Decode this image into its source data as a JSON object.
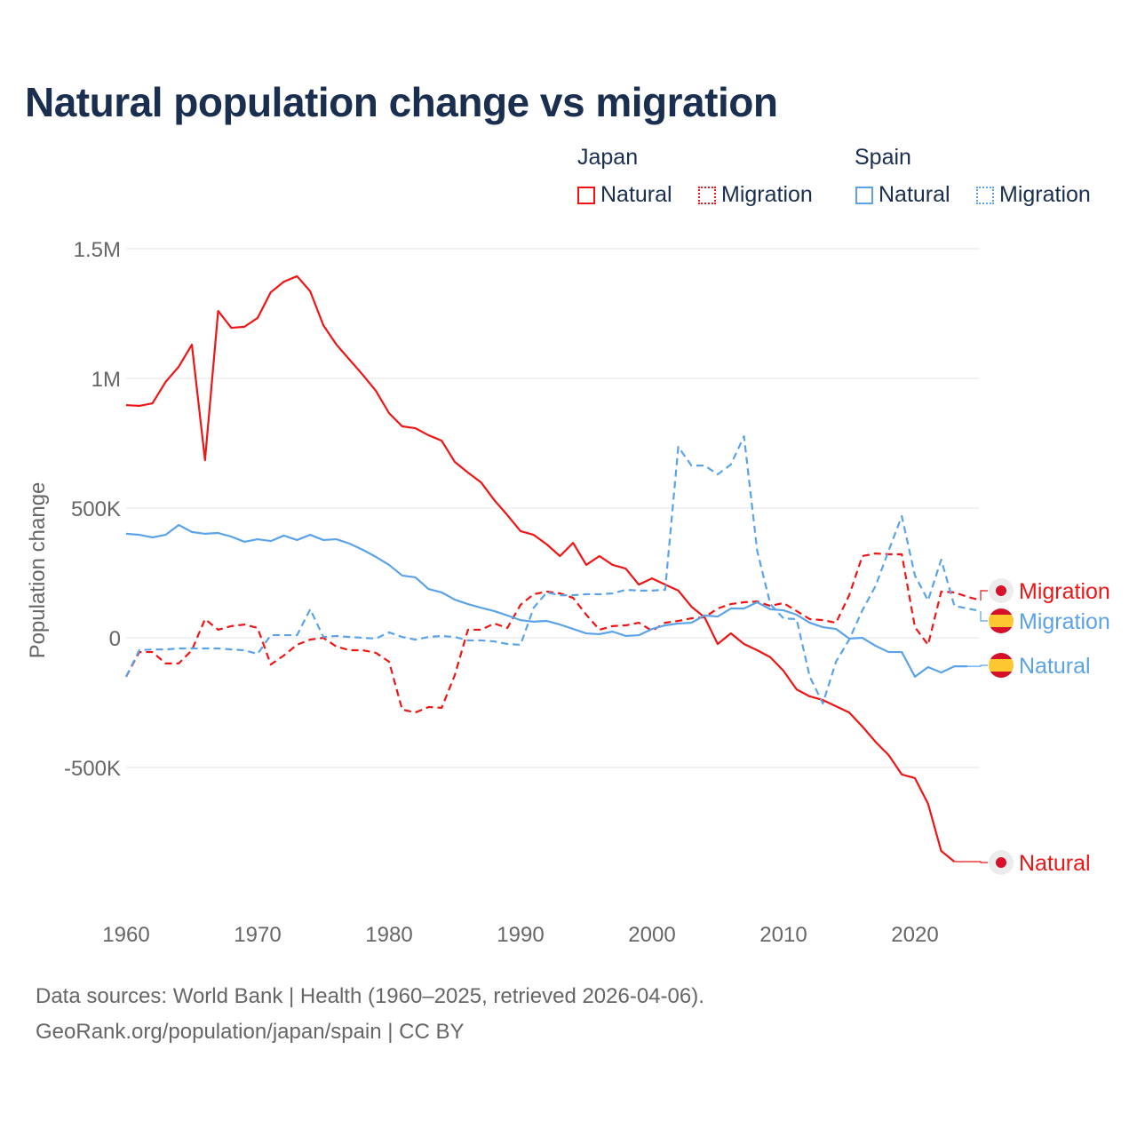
{
  "chart_data": {
    "type": "line",
    "title": "Natural population change vs migration",
    "xlabel": "",
    "ylabel": "Population change",
    "xlim": [
      1960,
      2025
    ],
    "ylim": [
      -1000000,
      1500000
    ],
    "grid": true,
    "legend_placement": "top-right",
    "x_ticks": [
      1960,
      1970,
      1980,
      1990,
      2000,
      2010,
      2020
    ],
    "x_tick_labels": [
      "1960",
      "1970",
      "1980",
      "1990",
      "2000",
      "2010",
      "2020"
    ],
    "y_ticks": [
      1500000,
      1000000,
      500000,
      0,
      -500000
    ],
    "y_tick_labels": [
      "1.5M",
      "1M",
      "500K",
      "0",
      "-500K"
    ],
    "legend": {
      "groups": [
        {
          "name": "Japan",
          "items": [
            "Natural",
            "Migration"
          ]
        },
        {
          "name": "Spain",
          "items": [
            "Natural",
            "Migration"
          ]
        }
      ]
    },
    "series": [
      {
        "name": "Japan Natural",
        "country": "Japan",
        "kind": "Natural",
        "color": "#f01414",
        "dash": false,
        "start": 1960,
        "end_label": "Natural",
        "flag": "japan",
        "values": [
          897,
          894,
          904,
          986,
          1045,
          1130,
          685,
          1260,
          1195,
          1199,
          1233,
          1332,
          1373,
          1394,
          1336,
          1205,
          1130,
          1072,
          1014,
          952,
          866,
          815,
          808,
          781,
          760,
          678,
          637,
          599,
          531,
          473,
          411,
          397,
          360,
          315,
          366,
          281,
          315,
          281,
          267,
          205,
          229,
          205,
          182,
          120,
          79,
          -24,
          17,
          -24,
          -48,
          -75,
          -127,
          -199,
          -226,
          -240,
          -264,
          -288,
          -342,
          -401,
          -452,
          -527,
          -541,
          -640,
          -822,
          -863
        ]
      },
      {
        "name": "Japan Migration",
        "country": "Japan",
        "kind": "Migration",
        "color": "#f01414",
        "dash": true,
        "start": 1960,
        "end_label": "Migration",
        "flag": "japan",
        "values": [
          -150,
          -55,
          -55,
          -99,
          -99,
          -48,
          72,
          31,
          45,
          51,
          38,
          -103,
          -68,
          -27,
          -7,
          0,
          -34,
          -48,
          -48,
          -58,
          -92,
          -277,
          -288,
          -267,
          -270,
          -144,
          31,
          31,
          55,
          38,
          127,
          168,
          178,
          171,
          154,
          89,
          31,
          45,
          48,
          58,
          27,
          58,
          65,
          75,
          79,
          113,
          130,
          137,
          140,
          123,
          134,
          103,
          72,
          68,
          58,
          164,
          315,
          325,
          322,
          322,
          41,
          -27,
          178,
          175,
          158,
          144
        ]
      },
      {
        "name": "Spain Natural",
        "country": "Spain",
        "kind": "Natural",
        "color": "#5ba3e8",
        "dash": false,
        "start": 1960,
        "end_label": "Natural",
        "flag": "spain",
        "values": [
          401,
          397,
          387,
          397,
          435,
          408,
          401,
          404,
          390,
          370,
          380,
          373,
          394,
          377,
          397,
          377,
          380,
          363,
          339,
          312,
          281,
          240,
          233,
          188,
          175,
          147,
          130,
          116,
          103,
          86,
          68,
          62,
          65,
          51,
          34,
          17,
          14,
          24,
          7,
          10,
          34,
          48,
          55,
          58,
          86,
          82,
          113,
          113,
          137,
          110,
          106,
          89,
          58,
          41,
          34,
          -3,
          0,
          -31,
          -55,
          -55,
          -150,
          -113,
          -134,
          -110,
          -110
        ]
      },
      {
        "name": "Spain Migration",
        "country": "Spain",
        "kind": "Migration",
        "color": "#5ba3e8",
        "dash": true,
        "start": 1960,
        "end_label": "Migration",
        "flag": "spain",
        "values": [
          -150,
          -48,
          -45,
          -45,
          -41,
          -41,
          -41,
          -41,
          -45,
          -48,
          -62,
          10,
          10,
          10,
          110,
          3,
          7,
          3,
          0,
          -3,
          21,
          3,
          -7,
          3,
          7,
          3,
          -10,
          -10,
          -14,
          -24,
          -27,
          116,
          175,
          164,
          164,
          168,
          168,
          171,
          185,
          182,
          182,
          185,
          736,
          664,
          664,
          630,
          668,
          777,
          336,
          130,
          75,
          72,
          -150,
          -253,
          -92,
          -7,
          106,
          199,
          336,
          469,
          240,
          144,
          301,
          123,
          113,
          103
        ]
      }
    ],
    "value_unit": "thousands"
  },
  "footer": {
    "line1": "Data sources: World Bank | Health (1960–2025, retrieved 2026-04-06).",
    "line2": "GeoRank.org/population/japan/spain | CC BY"
  }
}
